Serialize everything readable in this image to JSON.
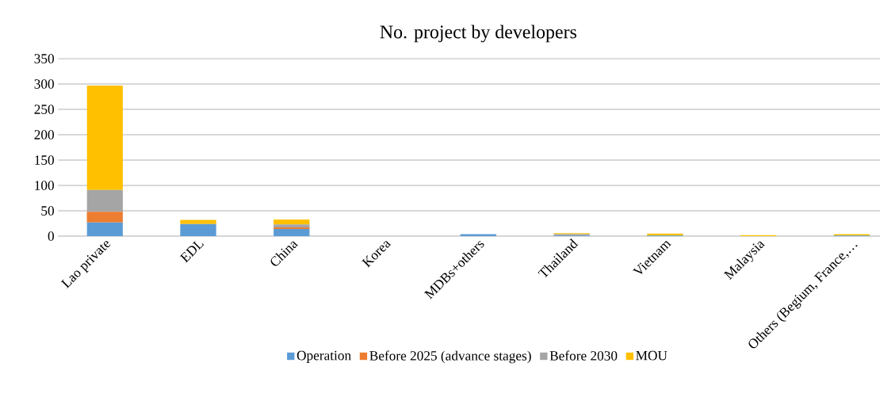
{
  "chart_data": {
    "type": "bar",
    "title": "No. project by developers",
    "stacked": true,
    "categories": [
      "Lao private",
      "EDL",
      "China",
      "Korea",
      "MDBs+others",
      "Thailand",
      "Vietnam",
      "Malaysia",
      "Others (Begium, France,…"
    ],
    "series": [
      {
        "name": "Operation",
        "color": "#5b9bd5",
        "values": [
          27,
          24,
          14,
          0,
          4,
          1,
          1,
          0,
          1
        ]
      },
      {
        "name": "Before 2025 (advance stages)",
        "color": "#ed7d31",
        "values": [
          21,
          0,
          3,
          0,
          0,
          0,
          0,
          0,
          0
        ]
      },
      {
        "name": "Before 2030",
        "color": "#a5a5a5",
        "values": [
          43,
          null,
          6,
          0,
          0,
          3,
          0,
          0,
          0
        ]
      },
      {
        "name": "MOU",
        "color": "#ffc000",
        "values": [
          206,
          8,
          10,
          0,
          0,
          2,
          4,
          2,
          3
        ]
      }
    ],
    "ylim": [
      0,
      350
    ],
    "yticks": [
      0,
      50,
      100,
      150,
      200,
      250,
      300,
      350
    ],
    "grid": "y",
    "legend": "bottom"
  }
}
